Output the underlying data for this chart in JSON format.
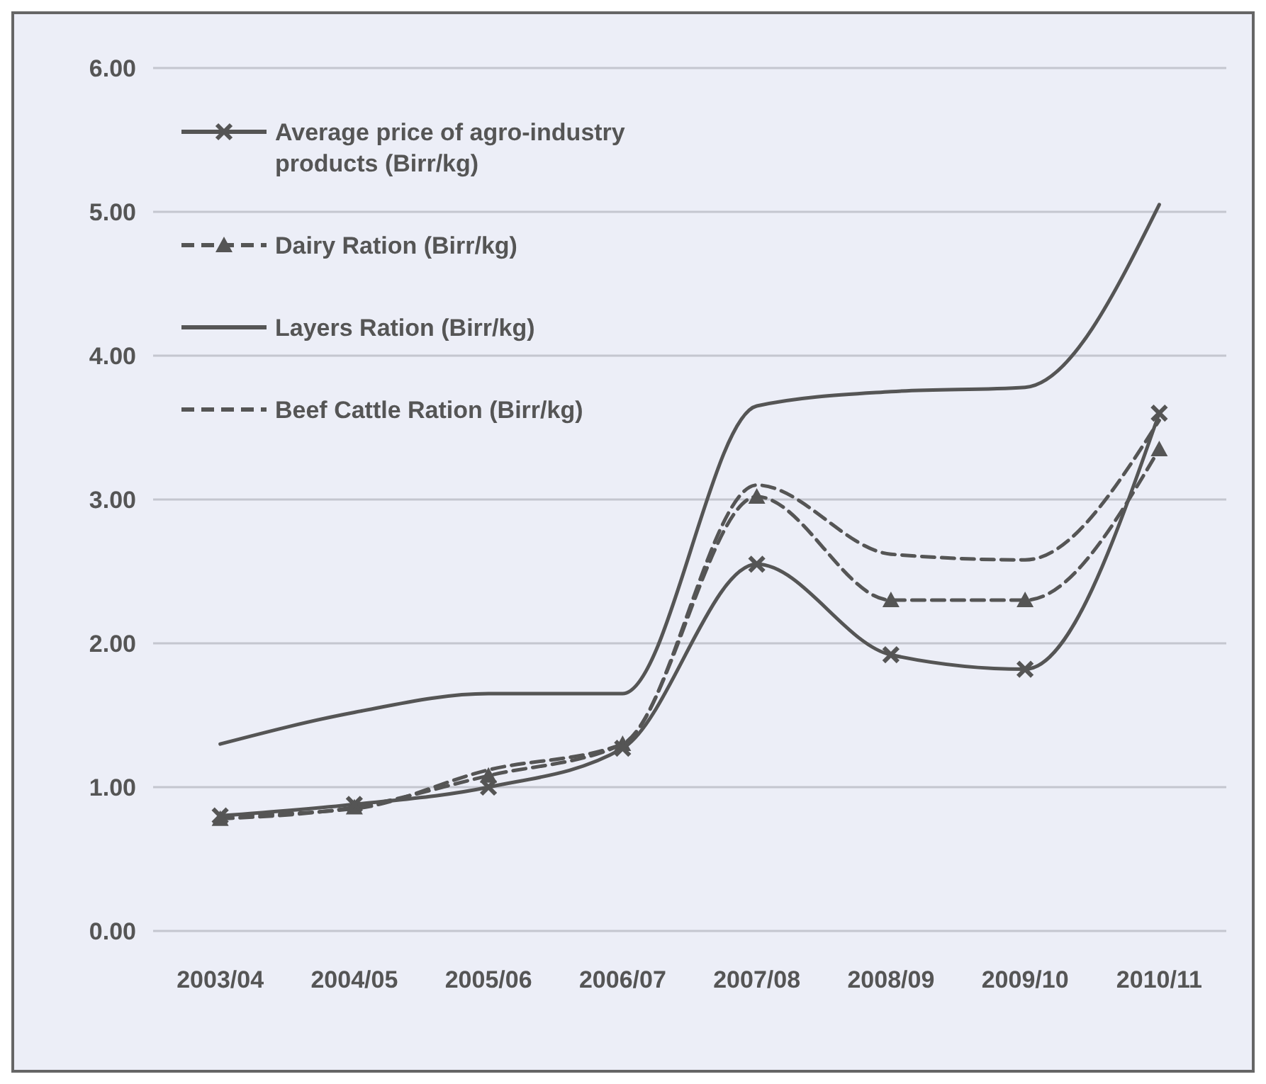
{
  "chart_data": {
    "type": "line",
    "categories": [
      "2003/04",
      "2004/05",
      "2005/06",
      "2006/07",
      "2007/08",
      "2008/09",
      "2009/10",
      "2010/11"
    ],
    "series": [
      {
        "name": "Average price of agro-industry products (Birr/kg)",
        "color": "#555555",
        "marker": "cross",
        "line_style": "solid",
        "values": [
          0.8,
          0.88,
          1.0,
          1.27,
          2.55,
          1.92,
          1.82,
          3.6
        ]
      },
      {
        "name": "Dairy Ration (Birr/kg)",
        "color": "#555555",
        "marker": "triangle",
        "line_style": "dashed",
        "values": [
          0.78,
          0.86,
          1.08,
          1.3,
          3.02,
          2.3,
          2.3,
          3.35
        ]
      },
      {
        "name": "Layers Ration (Birr/kg)",
        "color": "#555555",
        "marker": "none",
        "line_style": "solid",
        "values": [
          1.3,
          1.52,
          1.65,
          1.65,
          3.65,
          3.75,
          3.78,
          5.05
        ]
      },
      {
        "name": "Beef Cattle Ration (Birr/kg)",
        "color": "#555555",
        "marker": "none",
        "line_style": "dashed",
        "values": [
          0.8,
          0.85,
          1.12,
          1.3,
          3.1,
          2.62,
          2.58,
          3.55
        ]
      }
    ],
    "ylim": [
      0,
      6
    ],
    "yticks": [
      {
        "value": 0,
        "label": "0.00"
      },
      {
        "value": 1,
        "label": "1.00"
      },
      {
        "value": 2,
        "label": "2.00"
      },
      {
        "value": 3,
        "label": "3.00"
      },
      {
        "value": 4,
        "label": "4.00"
      },
      {
        "value": 5,
        "label": "5.00"
      },
      {
        "value": 6,
        "label": "6.00"
      }
    ],
    "grid": "y",
    "legend": "top left"
  }
}
